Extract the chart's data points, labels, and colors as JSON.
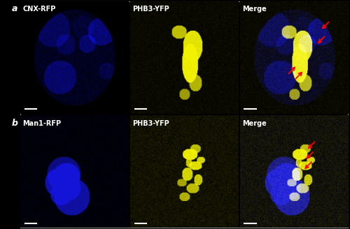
{
  "figure_background": "#000000",
  "panel_background": "#000000",
  "outer_border_color": "#888888",
  "panel_labels": [
    "a",
    "b"
  ],
  "row_a_titles": [
    "CNX-RFP",
    "PHB3-YFP",
    "Merge"
  ],
  "row_b_titles": [
    "Man1-RFP",
    "PHB3-YFP",
    "Merge"
  ],
  "title_color": "#ffffff",
  "title_fontsize": 7,
  "label_color": "#ffffff",
  "label_fontsize": 9,
  "scalebar_color": "#ffffff",
  "arrow_color": "#ff0000"
}
